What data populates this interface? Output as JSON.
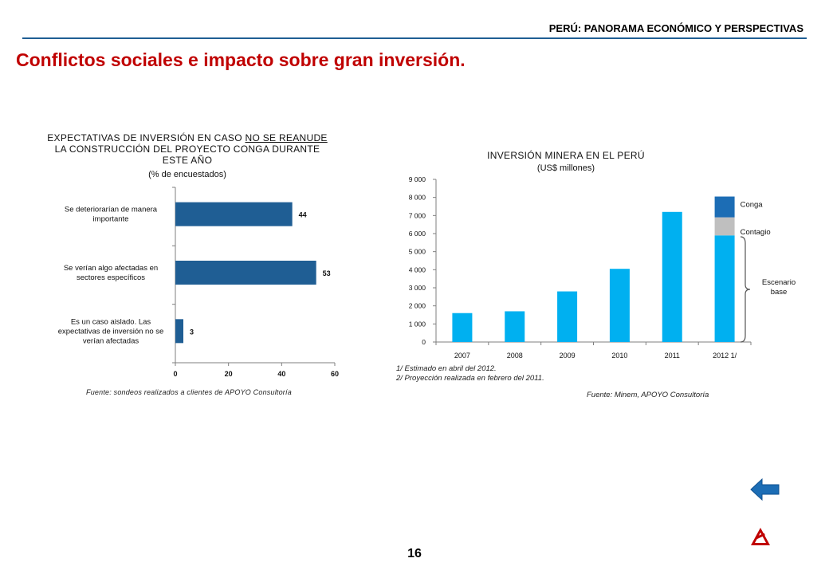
{
  "header": {
    "section_title": "PERÚ: PANORAMA ECONÓMICO Y PERSPECTIVAS"
  },
  "slide": {
    "title": "Conflictos sociales e impacto sobre gran inversión.",
    "page_number": "16"
  },
  "chart_left": {
    "title_line1_a": "EXPECTATIVAS DE INVERSIÓN EN CASO ",
    "title_line1_b": "NO SE REANUDE",
    "title_line2": "LA CONSTRUCCIÓN  DEL PROYECTO CONGA DURANTE",
    "title_line3": "ESTE AÑO",
    "subtitle": "(% de encuestados)",
    "source": "Fuente: sondeos realizados a clientes de APOYO Consultoría"
  },
  "chart_right": {
    "title": "INVERSIÓN MINERA EN EL PERÚ",
    "subtitle": "(US$ millones)",
    "note1": "1/ Estimado en abril del 2012.",
    "note2": "2/ Proyección realizada en febrero del 2011.",
    "source": "Fuente: Minem, APOYO Consultoría",
    "bracket_label_line1": "Escenario",
    "bracket_label_line2": "base"
  },
  "chart_data": [
    {
      "type": "bar",
      "orientation": "horizontal",
      "categories": [
        [
          "Se deteriorarían de manera",
          "importante"
        ],
        [
          "Se verían algo afectadas en",
          "sectores específicos"
        ],
        [
          "Es un caso aislado. Las",
          "expectativas de inversión no se",
          "verían afectadas"
        ]
      ],
      "values": [
        44,
        53,
        3
      ],
      "data_labels": [
        "44",
        "53",
        "3"
      ],
      "xlim": [
        0,
        60
      ],
      "xticks": [
        "0",
        "20",
        "40",
        "60"
      ],
      "color": "#1f5e94"
    },
    {
      "type": "bar",
      "stacked": true,
      "categories": [
        "2007",
        "2008",
        "2009",
        "2010",
        "2011",
        "2012 1/"
      ],
      "values": [
        1600,
        1700,
        2800,
        4050,
        7200,
        5900
      ],
      "stack_extra": [
        {
          "name": "Contagio",
          "value": 1000,
          "color": "#bfbfbf"
        },
        {
          "name": "Conga",
          "value": 1150,
          "color": "#1c6db5"
        }
      ],
      "ylim": [
        0,
        9000
      ],
      "yticks": [
        "0",
        "1 000",
        "2 000",
        "3 000",
        "4 000",
        "5 000",
        "6 000",
        "7 000",
        "8 000",
        "9 000"
      ],
      "color": "#00b0f0"
    }
  ]
}
